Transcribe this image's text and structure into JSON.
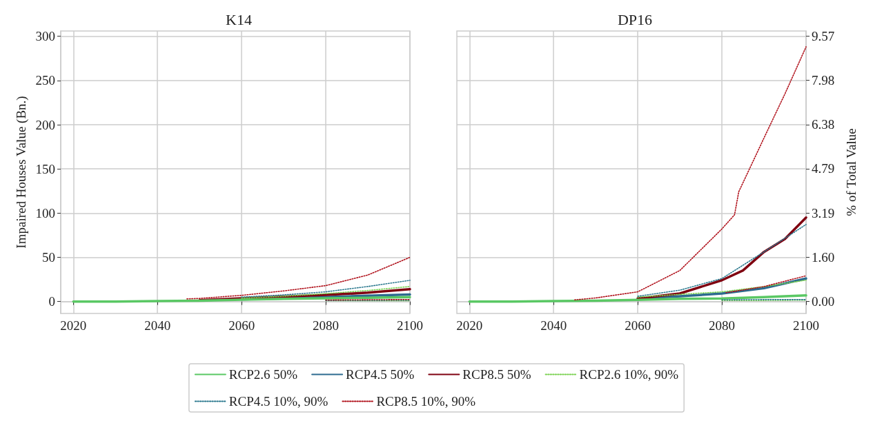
{
  "chart_data": [
    {
      "type": "line",
      "title": "K14",
      "ylabel": "Impaired Houses Value (Bn.)",
      "xlim": [
        2017,
        2100
      ],
      "xticks": [
        2020,
        2040,
        2060,
        2080,
        2100
      ],
      "ylim": [
        -13.5,
        306
      ],
      "yticks": [
        0,
        50,
        100,
        150,
        200,
        250,
        300
      ],
      "grid": true,
      "legend": "bottom",
      "series": [
        {
          "name": "RCP2.6 50%",
          "color": "#5ac864",
          "line_style": "solid",
          "x": [
            2020,
            2030,
            2040,
            2050,
            2060,
            2070,
            2080,
            2090,
            2100
          ],
          "values": [
            0,
            0,
            0.5,
            1,
            2,
            3,
            3.6,
            4.3,
            5
          ]
        },
        {
          "name": "RCP4.5 50%",
          "color": "#2c6b8f",
          "line_style": "solid",
          "x": [
            2060,
            2070,
            2080,
            2090,
            2100
          ],
          "values": [
            2.5,
            3.5,
            5,
            6.5,
            8
          ]
        },
        {
          "name": "RCP8.5 50%",
          "color": "#7f0010",
          "line_style": "solid",
          "x": [
            2050,
            2060,
            2070,
            2080,
            2090,
            2100
          ],
          "values": [
            1.5,
            3.6,
            5.5,
            7.5,
            10,
            14
          ]
        },
        {
          "name": "RCP2.6 10%, 90%",
          "color": "#7ad151",
          "line_style": "dotted",
          "x": [
            2060,
            2070,
            2080,
            2090,
            2100
          ],
          "values": [
            4,
            6,
            9,
            12.5,
            17
          ]
        },
        {
          "color": "#7ad151",
          "line_style": "dotted",
          "x": [
            2080,
            2090,
            2100
          ],
          "values": [
            1,
            1,
            1
          ]
        },
        {
          "name": "RCP4.5 10%, 90%",
          "color": "#2a788e",
          "line_style": "dotted",
          "x": [
            2060,
            2070,
            2080,
            2090,
            2100
          ],
          "values": [
            5,
            7.5,
            11,
            17,
            24
          ]
        },
        {
          "color": "#2a788e",
          "line_style": "dotted",
          "x": [
            2080,
            2090,
            2100
          ],
          "values": [
            1.2,
            1.4,
            1.5
          ]
        },
        {
          "name": "RCP8.5 10%, 90%",
          "color": "#b0101a",
          "line_style": "dotted",
          "x": [
            2047,
            2050,
            2060,
            2070,
            2080,
            2090,
            2100
          ],
          "values": [
            3,
            3.5,
            7,
            12,
            18,
            30,
            50
          ]
        },
        {
          "color": "#b0101a",
          "line_style": "dotted",
          "x": [
            2080,
            2090,
            2100
          ],
          "values": [
            1.7,
            2,
            2.3
          ]
        }
      ]
    },
    {
      "type": "line",
      "title": "DP16",
      "y2label": "% of Total Value",
      "xlim": [
        2017,
        2100
      ],
      "xticks": [
        2020,
        2040,
        2060,
        2080,
        2100
      ],
      "y2lim": [
        -0.43,
        9.76
      ],
      "y2ticks": [
        {
          "value": 0,
          "label": "0.00"
        },
        {
          "value": 1.6,
          "label": "1.60"
        },
        3.19,
        4.79,
        6.38,
        7.98,
        9.57
      ],
      "grid": true,
      "series": [
        {
          "axis": "y2",
          "color": "#5ac864",
          "line_style": "solid",
          "x": [
            2020,
            2030,
            2040,
            2050,
            2060,
            2070,
            2080,
            2090,
            2100
          ],
          "values": [
            0,
            0,
            0.02,
            0.03,
            0.06,
            0.1,
            0.11,
            0.16,
            0.22
          ]
        },
        {
          "axis": "y2",
          "color": "#2c6b8f",
          "line_style": "solid",
          "x": [
            2060,
            2070,
            2080,
            2090,
            2100
          ],
          "values": [
            0.11,
            0.19,
            0.29,
            0.48,
            0.83
          ]
        },
        {
          "axis": "y2",
          "color": "#7f0010",
          "line_style": "solid",
          "x": [
            2060,
            2070,
            2080,
            2085,
            2090,
            2095,
            2100
          ],
          "values": [
            0.11,
            0.29,
            0.77,
            1.12,
            1.79,
            2.26,
            3.03
          ]
        },
        {
          "axis": "y2",
          "color": "#7ad151",
          "line_style": "dotted",
          "x": [
            2060,
            2070,
            2080,
            2090,
            2100
          ],
          "values": [
            0.16,
            0.26,
            0.35,
            0.54,
            0.77
          ]
        },
        {
          "axis": "y2",
          "color": "#7ad151",
          "line_style": "dotted",
          "x": [
            2080,
            2090,
            2100
          ],
          "values": [
            0.04,
            0.04,
            0.05
          ]
        },
        {
          "axis": "y2",
          "color": "#2a788e",
          "line_style": "dotted",
          "x": [
            2060,
            2070,
            2080,
            2090,
            2100
          ],
          "values": [
            0.19,
            0.41,
            0.83,
            1.79,
            2.78
          ]
        },
        {
          "axis": "y2",
          "color": "#2a788e",
          "line_style": "dotted",
          "x": [
            2080,
            2090,
            2100
          ],
          "values": [
            0.06,
            0.07,
            0.07
          ]
        },
        {
          "axis": "y2",
          "color": "#b0101a",
          "line_style": "dotted",
          "x": [
            2045,
            2050,
            2060,
            2070,
            2080,
            2083,
            2084,
            2090,
            2095,
            2100
          ],
          "values": [
            0.06,
            0.13,
            0.35,
            1.12,
            2.62,
            3.13,
            3.96,
            5.9,
            7.5,
            9.19
          ]
        },
        {
          "axis": "y2",
          "color": "#b0101a",
          "line_style": "dotted",
          "x": [
            2081,
            2090,
            2100
          ],
          "values": [
            0.32,
            0.54,
            0.93
          ]
        }
      ]
    }
  ]
}
